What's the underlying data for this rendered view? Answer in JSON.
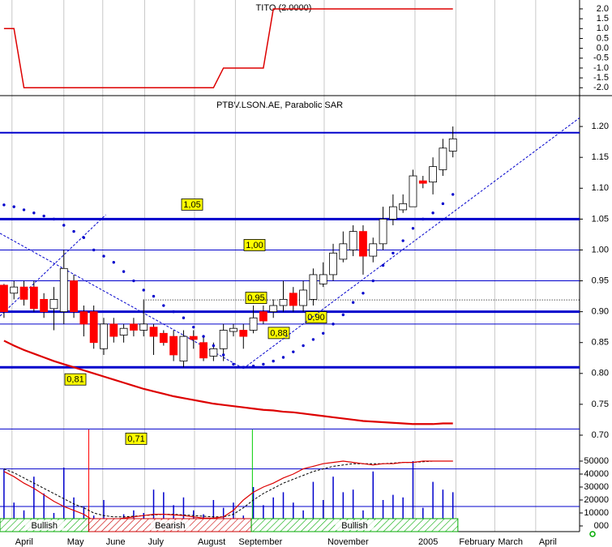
{
  "chart_data": [
    {
      "type": "line",
      "title": "TITO (2.0000)",
      "x": [
        0,
        1,
        2,
        3,
        4,
        5,
        6,
        7,
        8,
        9,
        10,
        11,
        12,
        13,
        14,
        15,
        16,
        17,
        18,
        19,
        20,
        21,
        22,
        23,
        24,
        25,
        26,
        27,
        28,
        29,
        30,
        31,
        32,
        33,
        34,
        35,
        36,
        37,
        38,
        39,
        40,
        41,
        42,
        43,
        44,
        45
      ],
      "values": [
        1,
        1,
        -2,
        -2,
        -2,
        -2,
        -2,
        -2,
        -2,
        -2,
        -2,
        -2,
        -2,
        -2,
        -2,
        -2,
        -2,
        -2,
        -2,
        -2,
        -2,
        -2,
        -1,
        -1,
        -1,
        -1,
        -1,
        2,
        2,
        2,
        2,
        2,
        2,
        2,
        2,
        2,
        2,
        2,
        2,
        2,
        2,
        2,
        2,
        2,
        2,
        2
      ],
      "color": "#dd0000",
      "xlim": [
        -0.4,
        57.7
      ],
      "ylim": [
        -2.4,
        2.45
      ],
      "yticks": [
        {
          "value": 2,
          "label": "2.0"
        },
        {
          "value": 1.5,
          "label": "1.5"
        },
        {
          "value": 1,
          "label": "1.0"
        },
        {
          "value": 0.5,
          "label": "0.5"
        },
        {
          "value": 0,
          "label": "0.0"
        },
        {
          "value": -0.5,
          "label": "-0.5"
        },
        {
          "value": -1,
          "label": "-1.0"
        },
        {
          "value": -1.5,
          "label": "-1.5"
        },
        {
          "value": -2,
          "label": "-2.0"
        }
      ]
    },
    {
      "type": "candlestick",
      "title": "PTBV.LSON.AE, Parabolic SAR",
      "x": [
        0,
        1,
        2,
        3,
        4,
        5,
        6,
        7,
        8,
        9,
        10,
        11,
        12,
        13,
        14,
        15,
        16,
        17,
        18,
        19,
        20,
        21,
        22,
        23,
        24,
        25,
        26,
        27,
        28,
        29,
        30,
        31,
        32,
        33,
        34,
        35,
        36,
        37,
        38,
        39,
        40,
        41,
        42,
        43,
        44,
        45
      ],
      "open": [
        0.943,
        0.93,
        0.94,
        0.94,
        0.92,
        0.905,
        0.9,
        0.95,
        0.9,
        0.9,
        0.84,
        0.88,
        0.862,
        0.88,
        0.87,
        0.875,
        0.865,
        0.86,
        0.82,
        0.86,
        0.85,
        0.828,
        0.84,
        0.868,
        0.87,
        0.87,
        0.9,
        0.9,
        0.91,
        0.93,
        0.91,
        0.92,
        0.945,
        0.96,
        0.985,
        1.0,
        1.03,
        0.99,
        1.01,
        1.05,
        1.065,
        1.07,
        1.112,
        1.11,
        1.13,
        1.16
      ],
      "high": [
        0.945,
        0.95,
        0.95,
        0.95,
        0.93,
        0.94,
        1.0,
        0.96,
        0.91,
        0.91,
        0.89,
        0.89,
        0.88,
        0.89,
        0.92,
        0.88,
        0.87,
        0.87,
        0.87,
        0.87,
        0.86,
        0.85,
        0.88,
        0.88,
        0.88,
        0.91,
        0.91,
        0.92,
        0.95,
        0.94,
        0.95,
        0.97,
        0.98,
        1.01,
        1.03,
        1.04,
        1.04,
        1.02,
        1.07,
        1.09,
        1.09,
        1.13,
        1.12,
        1.15,
        1.18,
        1.2
      ],
      "low": [
        0.89,
        0.92,
        0.91,
        0.9,
        0.89,
        0.87,
        0.88,
        0.89,
        0.86,
        0.84,
        0.83,
        0.85,
        0.85,
        0.86,
        0.86,
        0.83,
        0.845,
        0.82,
        0.81,
        0.84,
        0.82,
        0.82,
        0.82,
        0.86,
        0.84,
        0.865,
        0.88,
        0.89,
        0.9,
        0.9,
        0.9,
        0.91,
        0.94,
        0.95,
        0.98,
        0.99,
        0.96,
        0.98,
        1.0,
        1.04,
        1.06,
        1.07,
        1.1,
        1.09,
        1.12,
        1.15
      ],
      "close": [
        0.9,
        0.94,
        0.92,
        0.905,
        0.9,
        0.92,
        0.97,
        0.9,
        0.88,
        0.85,
        0.88,
        0.86,
        0.873,
        0.87,
        0.88,
        0.86,
        0.85,
        0.83,
        0.86,
        0.855,
        0.825,
        0.84,
        0.87,
        0.873,
        0.86,
        0.89,
        0.885,
        0.91,
        0.92,
        0.91,
        0.935,
        0.96,
        0.96,
        0.995,
        1.01,
        1.03,
        0.99,
        1.01,
        1.05,
        1.07,
        1.075,
        1.12,
        1.108,
        1.135,
        1.165,
        1.18
      ],
      "up_color": "#ffffff",
      "down_color": "#ff0000",
      "sar": [
        1.073,
        1.07,
        1.065,
        1.06,
        1.055,
        1.05,
        1.04,
        1.03,
        1.02,
        1.0,
        0.99,
        0.98,
        0.965,
        0.95,
        0.935,
        0.925,
        0.91,
        0.9,
        0.89,
        0.875,
        0.86,
        0.845,
        0.83,
        0.815,
        0.81,
        0.812,
        0.815,
        0.82,
        0.826,
        0.835,
        0.845,
        0.855,
        0.865,
        0.88,
        0.895,
        0.915,
        0.93,
        0.95,
        0.975,
        0.995,
        1.015,
        1.035,
        1.05,
        1.06,
        1.075,
        1.09
      ],
      "sar_color": "#0000cc",
      "ma": [
        0.853,
        0.845,
        0.838,
        0.832,
        0.826,
        0.82,
        0.815,
        0.81,
        0.805,
        0.8,
        0.795,
        0.79,
        0.785,
        0.78,
        0.775,
        0.771,
        0.767,
        0.763,
        0.76,
        0.757,
        0.754,
        0.751,
        0.749,
        0.747,
        0.745,
        0.743,
        0.741,
        0.74,
        0.738,
        0.737,
        0.735,
        0.733,
        0.731,
        0.729,
        0.727,
        0.725,
        0.723,
        0.722,
        0.721,
        0.72,
        0.719,
        0.718,
        0.718,
        0.718,
        0.719,
        0.719
      ],
      "ma_color": "#dd0000",
      "levels": [
        {
          "value": 1.19,
          "width": 2
        },
        {
          "value": 1.05,
          "label": "1,05",
          "width": 3
        },
        {
          "value": 1.0,
          "label": "1,00",
          "width": 1
        },
        {
          "value": 0.95,
          "label": "0,95",
          "width": 1
        },
        {
          "value": 0.919,
          "width": 1,
          "style": "dotted",
          "from": 14.2
        },
        {
          "value": 0.9,
          "label": "0,90",
          "width": 3
        },
        {
          "value": 0.88,
          "label": "0,88",
          "width": 1
        },
        {
          "value": 0.81,
          "label": "0,81",
          "width": 3
        },
        {
          "value": 0.71,
          "label": "0,71",
          "width": 1
        }
      ],
      "level_color": "#0000cc",
      "trendlines": [
        {
          "x": [
            -0.4,
            24.0
          ],
          "y": [
            1.027,
            0.808
          ]
        },
        {
          "x": [
            -0.4,
            10.2
          ],
          "y": [
            0.893,
            1.057
          ]
        },
        {
          "x": [
            24.0,
            57.7
          ],
          "y": [
            0.808,
            1.214
          ]
        }
      ],
      "xlim": [
        -0.4,
        57.7
      ],
      "ylim": [
        0.7,
        1.25
      ],
      "yticks": [
        {
          "value": 1.2,
          "label": "1.20"
        },
        {
          "value": 1.15,
          "label": "1.15"
        },
        {
          "value": 1.1,
          "label": "1.10"
        },
        {
          "value": 1.05,
          "label": "1.05"
        },
        {
          "value": 1.0,
          "label": "1.00"
        },
        {
          "value": 0.95,
          "label": "0.95"
        },
        {
          "value": 0.9,
          "label": "0.90"
        },
        {
          "value": 0.85,
          "label": "0.85"
        },
        {
          "value": 0.8,
          "label": "0.80"
        },
        {
          "value": 0.75,
          "label": "0.75"
        },
        {
          "value": 0.7,
          "label": "0.70"
        }
      ]
    },
    {
      "type": "bar",
      "x": [
        0,
        1,
        2,
        3,
        4,
        5,
        6,
        7,
        8,
        9,
        10,
        11,
        12,
        13,
        14,
        15,
        16,
        17,
        18,
        19,
        20,
        21,
        22,
        23,
        24,
        25,
        26,
        27,
        28,
        29,
        30,
        31,
        32,
        33,
        34,
        35,
        36,
        37,
        38,
        39,
        40,
        41,
        42,
        43,
        44,
        45
      ],
      "values": [
        44000,
        18000,
        12000,
        38000,
        25000,
        10000,
        45000,
        22000,
        15000,
        8000,
        20000,
        6000,
        9000,
        12000,
        10000,
        28000,
        26000,
        16000,
        22000,
        12000,
        9000,
        20000,
        14000,
        18000,
        8000,
        30000,
        16000,
        22000,
        26000,
        18000,
        12000,
        34000,
        20000,
        38000,
        26000,
        28000,
        12000,
        42000,
        20000,
        24000,
        22000,
        50000,
        14000,
        34000,
        28000,
        26000
      ],
      "color": "#0000cc",
      "ma1": [
        42000,
        38000,
        33000,
        29000,
        24000,
        19000,
        15000,
        12000,
        9000,
        4000,
        4500,
        5000,
        6000,
        7000,
        8000,
        9000,
        9000,
        8500,
        8000,
        7000,
        6000,
        6000,
        7000,
        12000,
        20000,
        26000,
        30000,
        33000,
        37000,
        40000,
        44000,
        46000,
        48000,
        49000,
        50000,
        49000,
        48000,
        47000,
        48000,
        48000,
        49000,
        49000,
        50000,
        50000,
        50000,
        50000
      ],
      "ma1_color": "#dd0000",
      "ma2": [
        44000,
        41000,
        37000,
        33000,
        29000,
        25000,
        21000,
        17000,
        14000,
        10000,
        8000,
        7000,
        7000,
        7500,
        8000,
        8500,
        9000,
        9000,
        8500,
        8000,
        7500,
        7000,
        7000,
        9000,
        14000,
        20000,
        25000,
        29000,
        33000,
        36000,
        39000,
        42000,
        44000,
        46000,
        47000,
        48000,
        48000,
        48000,
        48000,
        48500,
        49000,
        49000,
        49500,
        50000,
        50000,
        50000
      ],
      "ma2_color": "#000000",
      "levels": [
        44000,
        15000
      ],
      "signals": [
        {
          "x": 8.5,
          "color": "#ff0000"
        },
        {
          "x": 24.9,
          "color": "#00cc00"
        }
      ],
      "trend_bands": [
        {
          "label": "Bullish",
          "from": -0.4,
          "to": 8.5,
          "color": "#00aa00"
        },
        {
          "label": "Bearish",
          "from": 8.5,
          "to": 24.8,
          "color": "#cc0000"
        },
        {
          "label": "Bullish",
          "from": 24.8,
          "to": 45.5,
          "color": "#00aa00"
        }
      ],
      "xlim": [
        -0.4,
        57.7
      ],
      "ylim": [
        0,
        65000
      ],
      "yticks": [
        50000,
        40000,
        30000,
        20000,
        10000,
        {
          "value": 0,
          "label": "000"
        }
      ],
      "xticks": [
        {
          "value": 0.8,
          "label": "April"
        },
        {
          "value": 6.0,
          "label": "May"
        },
        {
          "value": 9.9,
          "label": "June"
        },
        {
          "value": 14.1,
          "label": "July"
        },
        {
          "value": 19.1,
          "label": "August"
        },
        {
          "value": 23.2,
          "label": "September"
        },
        {
          "value": 32.1,
          "label": "November"
        },
        {
          "value": 41.2,
          "label": "2005"
        },
        {
          "value": 45.3,
          "label": "February"
        },
        {
          "value": 49.2,
          "label": "March"
        },
        {
          "value": 53.3,
          "label": "April"
        }
      ]
    }
  ]
}
